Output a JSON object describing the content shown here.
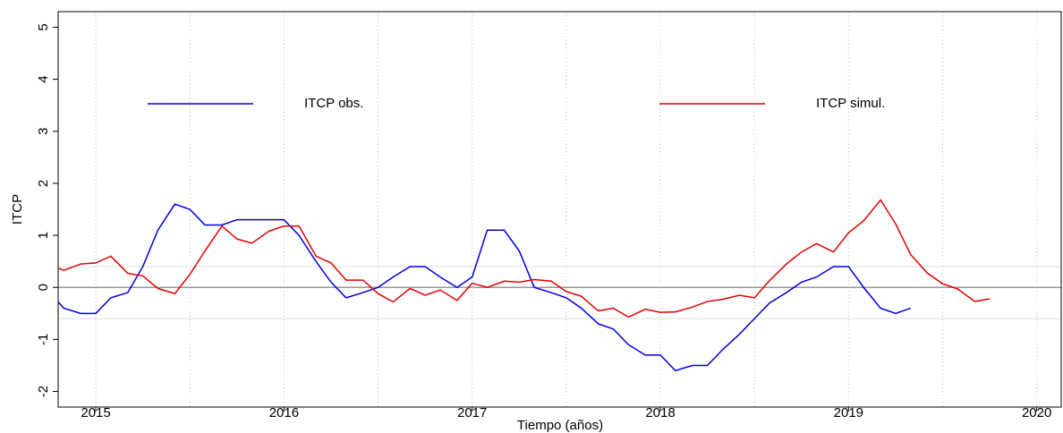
{
  "chart_data": {
    "type": "line",
    "x_label": "Tiempo (años)",
    "y_label": "ITCP",
    "x": [
      2014.8,
      2014.83,
      2014.92,
      2015,
      2015.08,
      2015.17,
      2015.25,
      2015.33,
      2015.42,
      2015.5,
      2015.58,
      2015.67,
      2015.75,
      2015.83,
      2015.92,
      2016,
      2016.08,
      2016.17,
      2016.25,
      2016.33,
      2016.42,
      2016.5,
      2016.58,
      2016.67,
      2016.75,
      2016.83,
      2016.92,
      2017,
      2017.08,
      2017.17,
      2017.25,
      2017.33,
      2017.42,
      2017.5,
      2017.58,
      2017.67,
      2017.75,
      2017.83,
      2017.92,
      2018,
      2018.08,
      2018.17,
      2018.25,
      2018.33,
      2018.42,
      2018.5,
      2018.58,
      2018.67,
      2018.75,
      2018.83,
      2018.92,
      2019,
      2019.08,
      2019.17,
      2019.25,
      2019.33,
      2019.42,
      2019.5,
      2019.58,
      2019.67,
      2019.75
    ],
    "series": [
      {
        "name": "ITCP obs.",
        "color": "#0000dd",
        "values": [
          -0.28,
          -0.4,
          -0.5,
          -0.5,
          -0.2,
          -0.1,
          0.4,
          1.1,
          1.6,
          1.5,
          1.2,
          1.2,
          1.3,
          1.3,
          1.3,
          1.3,
          1.0,
          0.5,
          0.1,
          -0.2,
          -0.1,
          0,
          0.2,
          0.4,
          0.4,
          0.2,
          0,
          0.2,
          1.1,
          1.1,
          0.7,
          0,
          -0.1,
          -0.2,
          -0.4,
          -0.7,
          -0.8,
          -1.1,
          -1.3,
          -1.3,
          -1.6,
          -1.5,
          -1.5,
          -1.2,
          -0.9,
          -0.6,
          -0.3,
          -0.1,
          0.1,
          0.2,
          0.4,
          0.4,
          0,
          -0.4,
          -0.5,
          -0.4,
          null,
          null,
          null,
          null,
          null
        ]
      },
      {
        "name": "ITCP simul.",
        "color": "#e00000",
        "values": [
          0.37,
          0.33,
          0.45,
          0.47,
          0.6,
          0.27,
          0.22,
          -0.02,
          -0.12,
          0.25,
          0.7,
          1.18,
          0.93,
          0.85,
          1.08,
          1.18,
          1.18,
          0.6,
          0.47,
          0.14,
          0.14,
          -0.12,
          -0.28,
          -0.02,
          -0.15,
          -0.05,
          -0.25,
          0.08,
          0,
          0.12,
          0.1,
          0.15,
          0.12,
          -0.08,
          -0.17,
          -0.45,
          -0.4,
          -0.57,
          -0.42,
          -0.48,
          -0.47,
          -0.38,
          -0.27,
          -0.23,
          -0.15,
          -0.2,
          0.13,
          0.45,
          0.68,
          0.84,
          0.68,
          1.05,
          1.28,
          1.68,
          1.22,
          0.63,
          0.27,
          0.07,
          -0.03,
          -0.27,
          -0.22
        ]
      }
    ],
    "xlim": [
      2014.8,
      2020.13
    ],
    "xticks": [
      2015,
      2016,
      2017,
      2018,
      2019,
      2020
    ],
    "xgrid": [
      2015,
      2015.5,
      2016,
      2016.5,
      2017,
      2017.5,
      2018,
      2018.5,
      2019,
      2019.5,
      2020
    ],
    "ylim": [
      -2.3,
      5.3
    ],
    "yticks": [
      -2,
      -1,
      0,
      1,
      2,
      3,
      4,
      5
    ],
    "reference_lines": [
      0,
      0.4,
      -0.6
    ],
    "legend": "top"
  }
}
